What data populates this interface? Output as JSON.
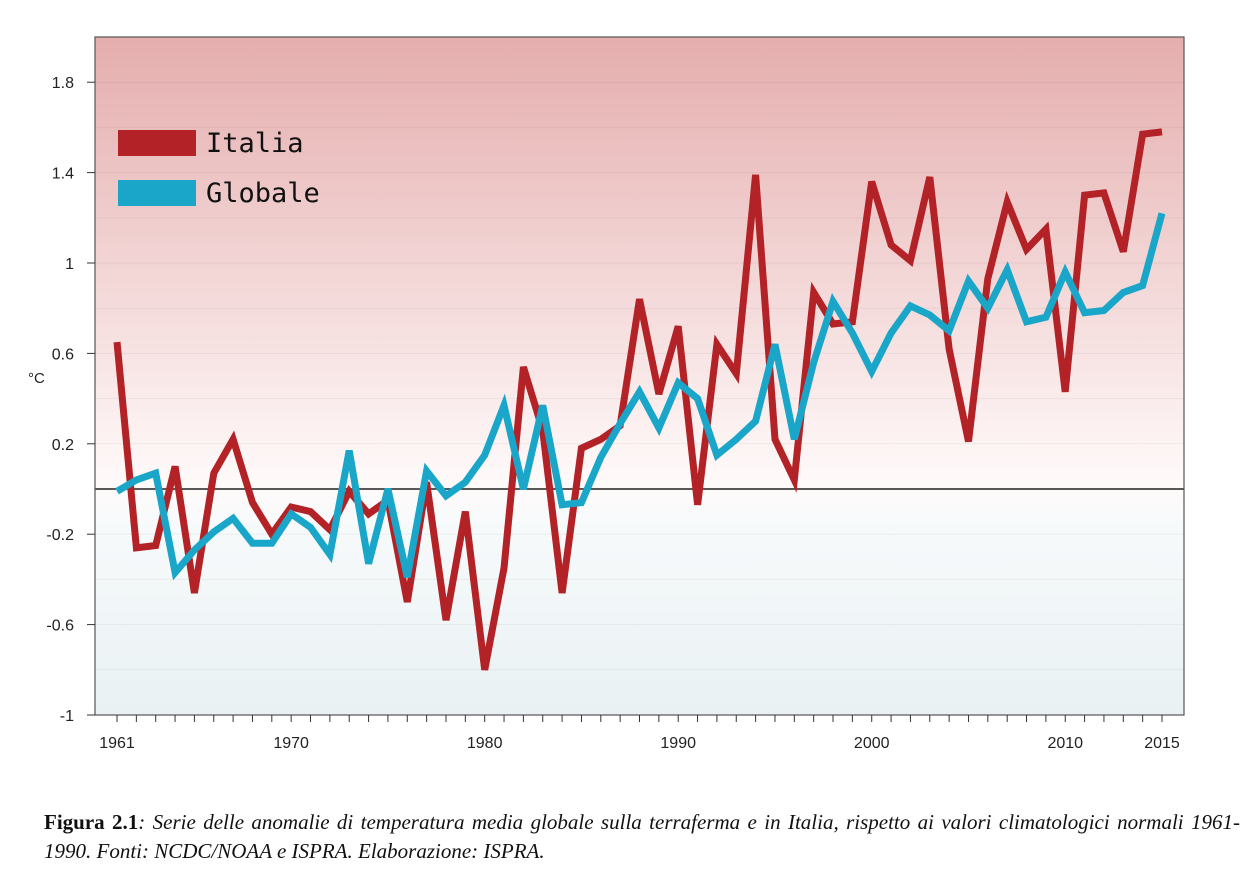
{
  "chart_data": {
    "type": "line",
    "xlabel": "",
    "ylabel": "°C",
    "xlim": [
      1961,
      2015
    ],
    "ylim": [
      -1,
      2
    ],
    "x_ticks": [
      1961,
      1970,
      1980,
      1990,
      2000,
      2010,
      2015
    ],
    "y_ticks": [
      -1,
      -0.6,
      -0.2,
      0.2,
      0.6,
      1,
      1.4,
      1.8
    ],
    "y_tick_labels": [
      "-1",
      "-0.6",
      "-0.2",
      "0.2",
      "0.6",
      "1",
      "1.4",
      "1.8"
    ],
    "reference_line": 0,
    "grid": true,
    "legend_position": "top-left",
    "x": [
      1961,
      1962,
      1963,
      1964,
      1965,
      1966,
      1967,
      1968,
      1969,
      1970,
      1971,
      1972,
      1973,
      1974,
      1975,
      1976,
      1977,
      1978,
      1979,
      1980,
      1981,
      1982,
      1983,
      1984,
      1985,
      1986,
      1987,
      1988,
      1989,
      1990,
      1991,
      1992,
      1993,
      1994,
      1995,
      1996,
      1997,
      1998,
      1999,
      2000,
      2001,
      2002,
      2003,
      2004,
      2005,
      2006,
      2007,
      2008,
      2009,
      2010,
      2011,
      2012,
      2013,
      2014,
      2015
    ],
    "series": [
      {
        "name": "Italia",
        "color": "#b22226",
        "values": [
          0.65,
          -0.26,
          -0.25,
          0.1,
          -0.46,
          0.07,
          0.22,
          -0.06,
          -0.2,
          -0.08,
          -0.1,
          -0.18,
          -0.01,
          -0.11,
          -0.05,
          -0.5,
          0.03,
          -0.58,
          -0.1,
          -0.8,
          -0.35,
          0.54,
          0.26,
          -0.46,
          0.18,
          0.22,
          0.28,
          0.84,
          0.42,
          0.72,
          -0.07,
          0.64,
          0.51,
          1.39,
          0.22,
          0.04,
          0.87,
          0.73,
          0.74,
          1.36,
          1.08,
          1.01,
          1.38,
          0.62,
          0.21,
          0.93,
          1.27,
          1.06,
          1.15,
          0.43,
          1.3,
          1.31,
          1.05,
          1.57,
          1.58
        ]
      },
      {
        "name": "Globale",
        "color": "#1aa6c8",
        "values": [
          -0.01,
          0.04,
          0.07,
          -0.37,
          -0.27,
          -0.19,
          -0.13,
          -0.24,
          -0.24,
          -0.11,
          -0.17,
          -0.29,
          0.17,
          -0.33,
          0.0,
          -0.39,
          0.08,
          -0.03,
          0.03,
          0.15,
          0.37,
          0.0,
          0.37,
          -0.07,
          -0.06,
          0.14,
          0.29,
          0.43,
          0.27,
          0.47,
          0.4,
          0.15,
          0.22,
          0.3,
          0.64,
          0.22,
          0.56,
          0.83,
          0.69,
          0.52,
          0.69,
          0.81,
          0.77,
          0.7,
          0.92,
          0.8,
          0.97,
          0.74,
          0.76,
          0.96,
          0.78,
          0.79,
          0.87,
          0.9,
          1.22
        ]
      }
    ]
  },
  "caption": {
    "label": "Figura 2.1",
    "text": ": Serie delle anomalie di temperatura media globale sulla terraferma e in Italia, rispetto ai valori climatologici normali 1961-1990. Fonti: NCDC/NOAA e ISPRA. Elaborazione: ISPRA."
  }
}
